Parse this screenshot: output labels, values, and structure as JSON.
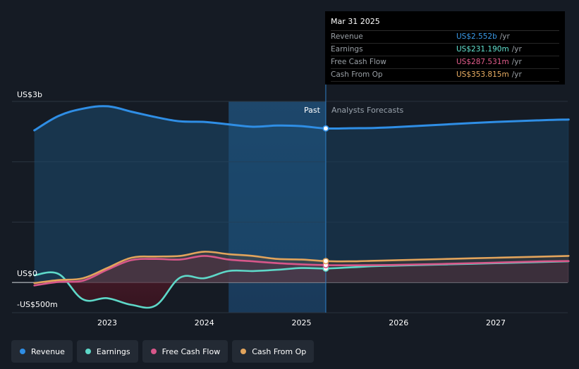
{
  "tooltip": {
    "date": "Mar 31 2025",
    "rows": [
      {
        "name": "Revenue",
        "value": "US$2.552b",
        "unit": "/yr",
        "color": "#3a9ae8"
      },
      {
        "name": "Earnings",
        "value": "US$231.190m",
        "unit": "/yr",
        "color": "#62e3d0"
      },
      {
        "name": "Free Cash Flow",
        "value": "US$287.531m",
        "unit": "/yr",
        "color": "#e45d8c"
      },
      {
        "name": "Cash From Op",
        "value": "US$353.815m",
        "unit": "/yr",
        "color": "#eaae63"
      }
    ]
  },
  "labels": {
    "past": "Past",
    "forecast": "Analysts Forecasts"
  },
  "legend": [
    {
      "name": "Revenue",
      "color": "#2f8ee5"
    },
    {
      "name": "Earnings",
      "color": "#5ed8c8"
    },
    {
      "name": "Free Cash Flow",
      "color": "#d8578a"
    },
    {
      "name": "Cash From Op",
      "color": "#e2a45c"
    }
  ],
  "chart_data": {
    "type": "line",
    "title": "",
    "xlabel": "",
    "ylabel": "",
    "units": "US$ millions",
    "ylim": [
      -500,
      3000
    ],
    "xlim": [
      2022.27,
      2027.76
    ],
    "y_ticks": [
      {
        "value": 3000,
        "label": "US$3b"
      },
      {
        "value": 0,
        "label": "US$0"
      },
      {
        "value": -500,
        "label": "-US$500m"
      }
    ],
    "x_ticks": [
      {
        "value": 2023,
        "label": "2023"
      },
      {
        "value": 2024,
        "label": "2024"
      },
      {
        "value": 2025,
        "label": "2025"
      },
      {
        "value": 2026,
        "label": "2026"
      },
      {
        "value": 2027,
        "label": "2027"
      }
    ],
    "past_end": 2025.25,
    "highlight_start": 2024.25,
    "series": [
      {
        "name": "Revenue",
        "color": "#2f8ee5",
        "x": [
          2022.25,
          2022.5,
          2022.75,
          2023.0,
          2023.25,
          2023.5,
          2023.75,
          2024.0,
          2024.25,
          2024.5,
          2024.75,
          2025.0,
          2025.25,
          2025.5,
          2025.75,
          2026.0,
          2026.5,
          2027.0,
          2027.5,
          2027.75
        ],
        "y": [
          2520,
          2760,
          2880,
          2920,
          2830,
          2740,
          2670,
          2660,
          2620,
          2580,
          2600,
          2590,
          2552,
          2556,
          2560,
          2576,
          2620,
          2660,
          2690,
          2700
        ]
      },
      {
        "name": "Earnings",
        "color": "#5ed8c8",
        "x": [
          2022.25,
          2022.5,
          2022.75,
          2023.0,
          2023.25,
          2023.5,
          2023.75,
          2024.0,
          2024.25,
          2024.5,
          2024.75,
          2025.0,
          2025.25,
          2025.5,
          2025.75,
          2026.0,
          2026.5,
          2027.0,
          2027.5,
          2027.75
        ],
        "y": [
          120,
          140,
          -280,
          -260,
          -370,
          -380,
          80,
          70,
          190,
          190,
          210,
          240,
          231,
          250,
          270,
          280,
          300,
          320,
          340,
          350
        ]
      },
      {
        "name": "Free Cash Flow",
        "color": "#d8578a",
        "x": [
          2022.25,
          2022.5,
          2022.75,
          2023.0,
          2023.25,
          2023.5,
          2023.75,
          2024.0,
          2024.25,
          2024.5,
          2024.75,
          2025.0,
          2025.25,
          2025.5,
          2025.75,
          2026.0,
          2026.5,
          2027.0,
          2027.5,
          2027.75
        ],
        "y": [
          -50,
          10,
          30,
          210,
          370,
          390,
          380,
          440,
          380,
          350,
          320,
          300,
          288,
          285,
          288,
          292,
          310,
          330,
          350,
          355
        ]
      },
      {
        "name": "Cash From Op",
        "color": "#e2a45c",
        "x": [
          2022.25,
          2022.5,
          2022.75,
          2023.0,
          2023.25,
          2023.5,
          2023.75,
          2024.0,
          2024.25,
          2024.5,
          2024.75,
          2025.0,
          2025.25,
          2025.5,
          2025.75,
          2026.0,
          2026.5,
          2027.0,
          2027.5,
          2027.75
        ],
        "y": [
          -10,
          40,
          70,
          240,
          410,
          430,
          440,
          510,
          470,
          440,
          390,
          380,
          354,
          350,
          360,
          370,
          390,
          410,
          430,
          440
        ]
      }
    ]
  }
}
